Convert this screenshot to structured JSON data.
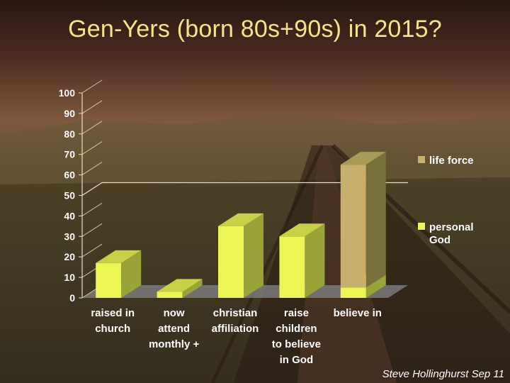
{
  "page": {
    "title": "Gen-Yers (born 80s+90s) in 2015?",
    "credit": "Steve Hollinghurst Sep 11"
  },
  "chart_data": {
    "type": "bar",
    "stacked": true,
    "three_d": true,
    "title": "",
    "xlabel": "",
    "ylabel": "",
    "ylim": [
      0,
      100
    ],
    "yticks": [
      0,
      10,
      20,
      30,
      40,
      50,
      60,
      70,
      80,
      90,
      100
    ],
    "reference_line": 50,
    "categories": [
      [
        "raised in",
        "church"
      ],
      [
        "now",
        "attend",
        "monthly +"
      ],
      [
        "christian",
        "affiliation"
      ],
      [
        "raise",
        "children",
        "to believe",
        "in God"
      ],
      [
        "believe in"
      ]
    ],
    "series": [
      {
        "name": "personal God",
        "name_lines": [
          "personal",
          "God"
        ],
        "color": "#ecf554",
        "side_color": "#9aa23a",
        "top_color": "#c8d045",
        "values": [
          17,
          3,
          35,
          30,
          5
        ]
      },
      {
        "name": "life force",
        "name_lines": [
          "life force"
        ],
        "color": "#c9b06a",
        "side_color": "#77703a",
        "top_color": "#a99a58",
        "values": [
          0,
          0,
          0,
          0,
          60
        ]
      }
    ],
    "legend_position": "right"
  }
}
